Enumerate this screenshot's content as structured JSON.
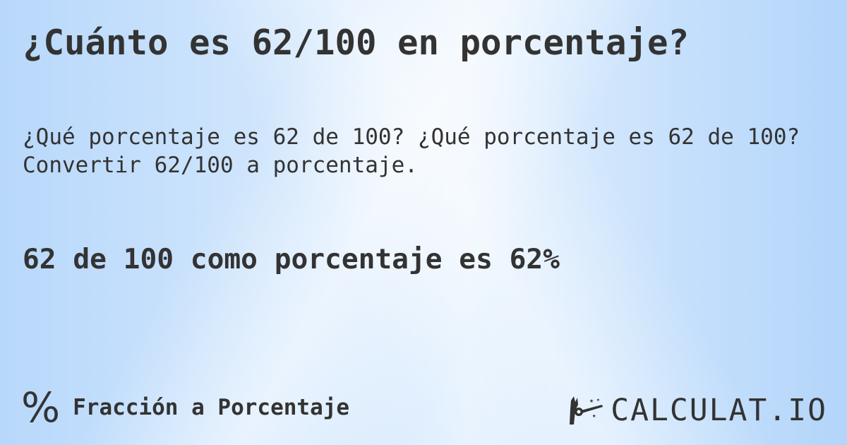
{
  "title": "¿Cuánto es 62/100 en porcentaje?",
  "subtitle_line1": "¿Qué porcentaje es 62 de 100? ¿Qué porcentaje es 62 de 100?",
  "subtitle_line2": "Convertir 62/100 a porcentaje.",
  "result": "62 de 100 como porcentaje es 62%",
  "footer": {
    "icon": "percent-icon",
    "label": "Fracción a Porcentaje"
  },
  "logo": {
    "text": "CALCULAT.IO",
    "icon": "magic-hand-icon"
  },
  "colors": {
    "text": "#333333",
    "background": "#c6e0fc"
  }
}
